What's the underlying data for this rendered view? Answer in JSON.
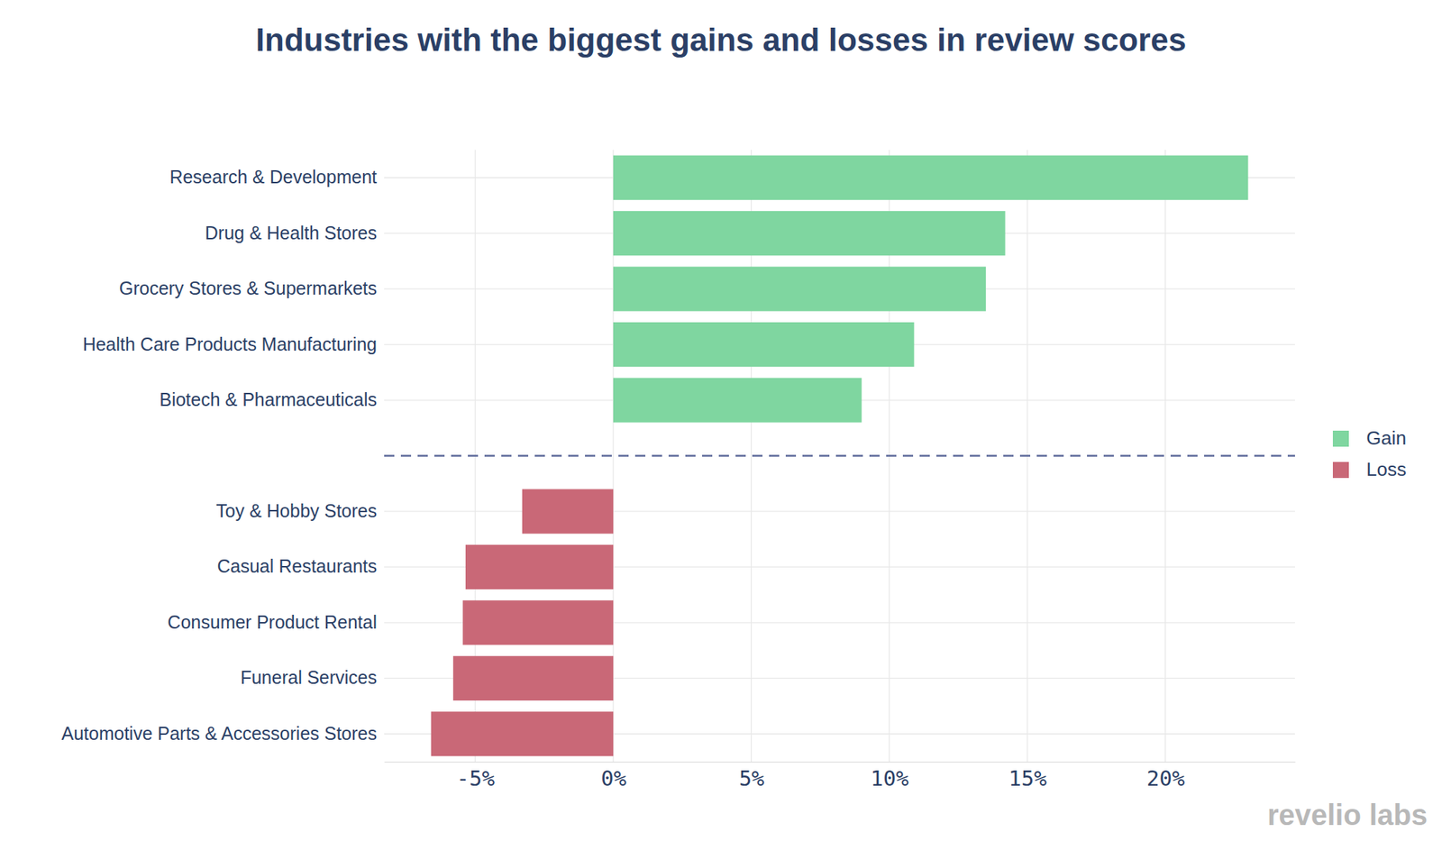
{
  "chart_data": {
    "type": "bar",
    "orientation": "horizontal",
    "title": "Industries with the biggest gains and losses in review scores",
    "watermark": "revelio labs",
    "categories": [
      "Research & Development",
      "Drug & Health Stores",
      "Grocery Stores & Supermarkets",
      "Health Care Products Manufacturing",
      "Biotech & Pharmaceuticals",
      null,
      "Toy & Hobby Stores",
      "Casual Restaurants",
      "Consumer Product Rental",
      "Funeral Services",
      "Automotive Parts & Accessories Stores"
    ],
    "series": [
      {
        "name": "Gain",
        "color": "#7fd6a0",
        "values": [
          23,
          14.2,
          13.5,
          10.9,
          9,
          null,
          null,
          null,
          null,
          null,
          null
        ]
      },
      {
        "name": "Loss",
        "color": "#c96877",
        "values": [
          null,
          null,
          null,
          null,
          null,
          null,
          -3.3,
          -5.35,
          -5.45,
          -5.8,
          -6.6
        ]
      }
    ],
    "xlim": [
      -8.3,
      24.7
    ],
    "xticks": [
      {
        "value": -5,
        "label": "-5%"
      },
      {
        "value": 0,
        "label": "0%"
      },
      {
        "value": 5,
        "label": "5%"
      },
      {
        "value": 10,
        "label": "10%"
      },
      {
        "value": 15,
        "label": "15%"
      },
      {
        "value": 20,
        "label": "20%"
      }
    ],
    "grid": true,
    "legend": "right"
  }
}
